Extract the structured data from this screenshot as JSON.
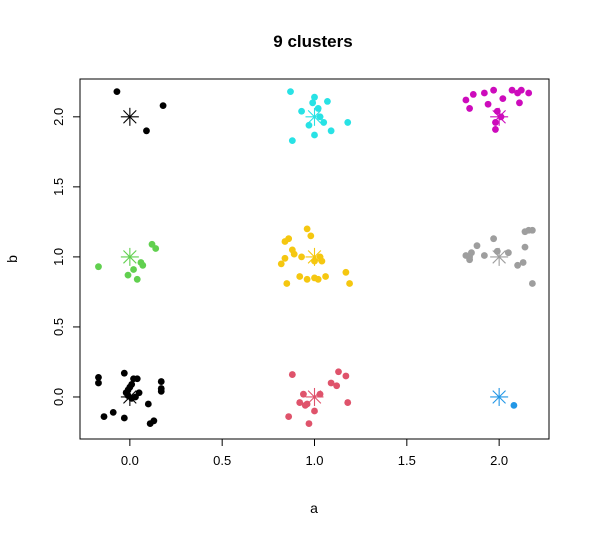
{
  "chart_data": {
    "type": "scatter",
    "title": "9 clusters",
    "xlabel": "a",
    "ylabel": "b",
    "xlim": [
      -0.27,
      2.27
    ],
    "ylim": [
      -0.3,
      2.27
    ],
    "xticks": [
      "0.0",
      "0.5",
      "1.0",
      "1.5",
      "2.0"
    ],
    "xtick_values": [
      0,
      0.5,
      1,
      1.5,
      2
    ],
    "yticks": [
      "0.0",
      "0.5",
      "1.0",
      "1.5",
      "2.0"
    ],
    "ytick_values": [
      0,
      0.5,
      1,
      1.5,
      2
    ],
    "grid": false,
    "legend": "none",
    "clusters": [
      {
        "color": "#000000",
        "center": [
          0,
          2
        ],
        "points": [
          [
            -0.07,
            2.18
          ],
          [
            0.09,
            1.9
          ],
          [
            0.18,
            2.08
          ]
        ]
      },
      {
        "color": "#28E2E5",
        "center": [
          1,
          2
        ],
        "points": [
          [
            0.87,
            2.18
          ],
          [
            0.88,
            1.83
          ],
          [
            0.93,
            2.04
          ],
          [
            0.97,
            1.94
          ],
          [
            0.99,
            2.1
          ],
          [
            1.0,
            2.14
          ],
          [
            1.0,
            1.87
          ],
          [
            1.03,
            2.0
          ],
          [
            1.05,
            1.96
          ],
          [
            1.07,
            2.11
          ],
          [
            1.09,
            1.9
          ],
          [
            1.18,
            1.96
          ],
          [
            1.02,
            2.06
          ]
        ]
      },
      {
        "color": "#CD0BBC",
        "center": [
          2,
          2
        ],
        "points": [
          [
            1.82,
            2.12
          ],
          [
            1.86,
            2.16
          ],
          [
            1.84,
            2.06
          ],
          [
            1.92,
            2.17
          ],
          [
            1.94,
            2.09
          ],
          [
            1.97,
            2.19
          ],
          [
            1.98,
            1.96
          ],
          [
            1.98,
            1.91
          ],
          [
            2.01,
            2.0
          ],
          [
            2.02,
            2.13
          ],
          [
            2.07,
            2.19
          ],
          [
            2.1,
            2.17
          ],
          [
            2.12,
            2.19
          ],
          [
            2.16,
            2.17
          ],
          [
            2.11,
            2.1
          ],
          [
            1.99,
            2.04
          ]
        ]
      },
      {
        "color": "#61D04F",
        "center": [
          0,
          1
        ],
        "points": [
          [
            -0.17,
            0.93
          ],
          [
            -0.01,
            0.87
          ],
          [
            0.02,
            0.91
          ],
          [
            0.04,
            0.84
          ],
          [
            0.06,
            0.96
          ],
          [
            0.07,
            0.94
          ],
          [
            0.12,
            1.09
          ],
          [
            0.14,
            1.06
          ]
        ]
      },
      {
        "color": "#F5C710",
        "center": [
          1,
          1
        ],
        "points": [
          [
            0.82,
            0.95
          ],
          [
            0.84,
            0.99
          ],
          [
            0.84,
            1.11
          ],
          [
            0.85,
            0.81
          ],
          [
            0.86,
            1.13
          ],
          [
            0.88,
            1.05
          ],
          [
            0.89,
            1.02
          ],
          [
            0.92,
            0.86
          ],
          [
            0.93,
            1.0
          ],
          [
            0.96,
            1.2
          ],
          [
            0.96,
            0.84
          ],
          [
            0.98,
            1.15
          ],
          [
            1.0,
            0.85
          ],
          [
            1.0,
            0.97
          ],
          [
            1.03,
            1.0
          ],
          [
            1.02,
            0.84
          ],
          [
            1.06,
            0.86
          ],
          [
            1.17,
            0.89
          ],
          [
            1.19,
            0.81
          ],
          [
            1.04,
            0.97
          ]
        ]
      },
      {
        "color": "#9E9E9E",
        "center": [
          2,
          1
        ],
        "points": [
          [
            1.82,
            1.01
          ],
          [
            1.84,
            1.0
          ],
          [
            1.84,
            0.98
          ],
          [
            1.88,
            1.08
          ],
          [
            1.92,
            1.01
          ],
          [
            1.97,
            1.13
          ],
          [
            1.99,
            1.04
          ],
          [
            2.05,
            1.03
          ],
          [
            2.1,
            0.94
          ],
          [
            2.13,
            0.96
          ],
          [
            2.14,
            1.07
          ],
          [
            2.14,
            1.18
          ],
          [
            2.16,
            1.19
          ],
          [
            2.18,
            1.19
          ],
          [
            2.18,
            0.81
          ],
          [
            1.85,
            1.03
          ]
        ]
      },
      {
        "color": "#000000",
        "center": [
          0,
          0
        ],
        "points": [
          [
            -0.17,
            0.14
          ],
          [
            -0.17,
            0.1
          ],
          [
            -0.14,
            -0.14
          ],
          [
            -0.09,
            -0.11
          ],
          [
            -0.03,
            0.17
          ],
          [
            -0.03,
            -0.15
          ],
          [
            -0.02,
            0.03
          ],
          [
            -0.01,
            0.05
          ],
          [
            0.0,
            0.07
          ],
          [
            0.01,
            0.09
          ],
          [
            0.02,
            0.13
          ],
          [
            0.04,
            0.13
          ],
          [
            0.03,
            0.0
          ],
          [
            0.05,
            0.03
          ],
          [
            0.1,
            -0.05
          ],
          [
            0.11,
            -0.19
          ],
          [
            0.13,
            -0.17
          ],
          [
            0.17,
            0.11
          ],
          [
            0.17,
            0.06
          ],
          [
            0.17,
            0.04
          ],
          [
            0.01,
            -0.01
          ],
          [
            -0.01,
            0.01
          ]
        ]
      },
      {
        "color": "#DF536B",
        "center": [
          1,
          0
        ],
        "points": [
          [
            0.86,
            -0.14
          ],
          [
            0.88,
            0.16
          ],
          [
            0.92,
            -0.04
          ],
          [
            0.94,
            0.02
          ],
          [
            0.95,
            -0.06
          ],
          [
            0.96,
            -0.05
          ],
          [
            0.97,
            -0.19
          ],
          [
            1.0,
            -0.1
          ],
          [
            1.09,
            0.1
          ],
          [
            1.12,
            0.08
          ],
          [
            1.13,
            0.18
          ],
          [
            1.17,
            0.15
          ],
          [
            1.18,
            -0.04
          ],
          [
            1.03,
            0.02
          ]
        ]
      },
      {
        "color": "#2297E6",
        "center": [
          2,
          0
        ],
        "points": [
          [
            2.08,
            -0.06
          ]
        ]
      }
    ]
  }
}
